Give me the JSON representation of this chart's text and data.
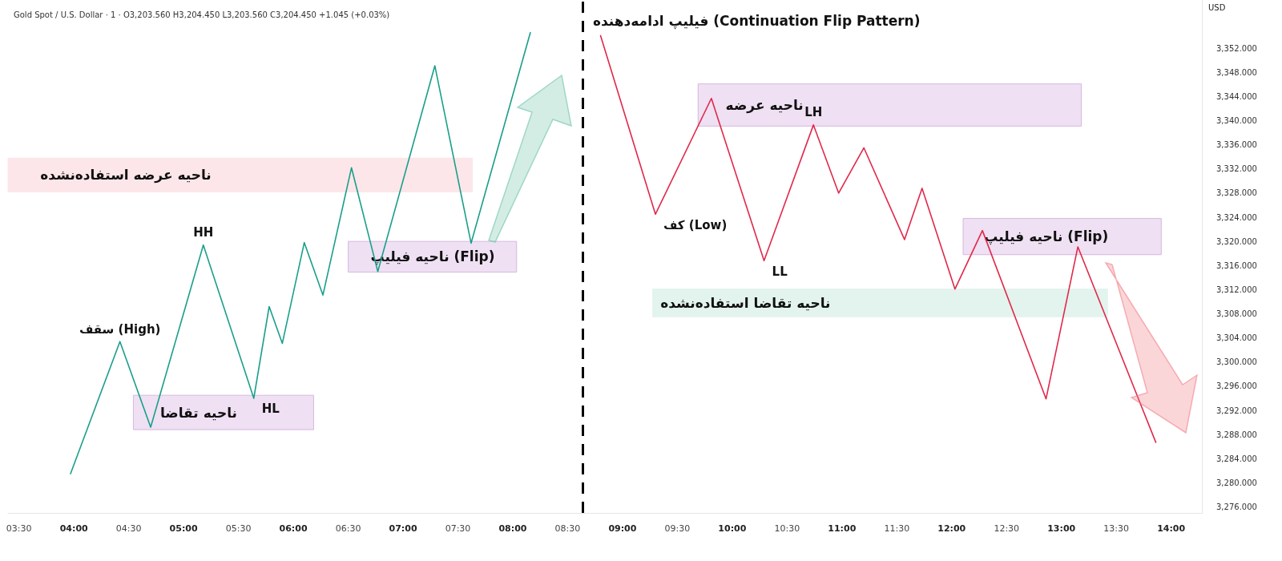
{
  "chart_data": {
    "type": "line",
    "title": "فیلیپ ادامه‌دهنده (Continuation Flip Pattern)",
    "subtitle": "Gold Spot / U.S. Dollar · 1 · O3,203.560 H3,204.450 L3,203.560 C3,204.450 +1.045 (+0.03%)",
    "ylabel": "USD",
    "marker": "none",
    "line_style": "solid",
    "xlim": [
      3.4,
      14.28
    ],
    "ylim": [
      3275,
      3360
    ],
    "xticks": [
      {
        "value": 3.5,
        "label": "03:30"
      },
      {
        "value": 4,
        "label": "04:00"
      },
      {
        "value": 4.5,
        "label": "04:30"
      },
      {
        "value": 5,
        "label": "05:00"
      },
      {
        "value": 5.5,
        "label": "05:30"
      },
      {
        "value": 6,
        "label": "06:00"
      },
      {
        "value": 6.5,
        "label": "06:30"
      },
      {
        "value": 7,
        "label": "07:00"
      },
      {
        "value": 7.5,
        "label": "07:30"
      },
      {
        "value": 8,
        "label": "08:00"
      },
      {
        "value": 8.5,
        "label": "08:30"
      },
      {
        "value": 9,
        "label": "09:00"
      },
      {
        "value": 9.5,
        "label": "09:30"
      },
      {
        "value": 10,
        "label": "10:00"
      },
      {
        "value": 10.5,
        "label": "10:30"
      },
      {
        "value": 11,
        "label": "11:00"
      },
      {
        "value": 11.5,
        "label": "11:30"
      },
      {
        "value": 12,
        "label": "12:00"
      },
      {
        "value": 12.5,
        "label": "12:30"
      },
      {
        "value": 13,
        "label": "13:00"
      },
      {
        "value": 13.5,
        "label": "13:30"
      },
      {
        "value": 14,
        "label": "14:00"
      }
    ],
    "yticks": [
      {
        "value": 3276,
        "label": "3,276.000"
      },
      {
        "value": 3280,
        "label": "3,280.000"
      },
      {
        "value": 3284,
        "label": "3,284.000"
      },
      {
        "value": 3288,
        "label": "3,288.000"
      },
      {
        "value": 3292,
        "label": "3,292.000"
      },
      {
        "value": 3296,
        "label": "3,296.000"
      },
      {
        "value": 3300,
        "label": "3,300.000"
      },
      {
        "value": 3304,
        "label": "3,304.000"
      },
      {
        "value": 3308,
        "label": "3,308.000"
      },
      {
        "value": 3312,
        "label": "3,312.000"
      },
      {
        "value": 3316,
        "label": "3,316.000"
      },
      {
        "value": 3320,
        "label": "3,320.000"
      },
      {
        "value": 3324,
        "label": "3,324.000"
      },
      {
        "value": 3328,
        "label": "3,328.000"
      },
      {
        "value": 3332,
        "label": "3,332.000"
      },
      {
        "value": 3336,
        "label": "3,336.000"
      },
      {
        "value": 3340,
        "label": "3,340.000"
      },
      {
        "value": 3344,
        "label": "3,344.000"
      },
      {
        "value": 3348,
        "label": "3,348.000"
      },
      {
        "value": 3352,
        "label": "3,352.000"
      }
    ],
    "series": [
      {
        "color": "#1a9e8a",
        "x": [
          3.97,
          4.42,
          4.7,
          5.18,
          5.64,
          5.78,
          5.9,
          6.1,
          6.27,
          6.53,
          6.77,
          7.29,
          7.62,
          8.16
        ],
        "values": [
          3281.5,
          3303.4,
          3289.2,
          3319.4,
          3294,
          3309.2,
          3303.1,
          3319.8,
          3311.1,
          3332.2,
          3315,
          3349.1,
          3319.7,
          3354.6
        ]
      },
      {
        "color": "#e0284a",
        "x": [
          8.8,
          9.3,
          9.81,
          10.29,
          10.74,
          10.97,
          11.2,
          11.57,
          11.73,
          12.03,
          12.28,
          12.86,
          13.15,
          13.86
        ],
        "values": [
          3354.1,
          3324.5,
          3343.7,
          3316.8,
          3339.3,
          3328,
          3335.5,
          3320.3,
          3328.8,
          3312.1,
          3321.8,
          3293.9,
          3319.1,
          3286.7
        ]
      }
    ],
    "bands": [
      {
        "axis": "y",
        "from": 3328.2,
        "to": 3333.8,
        "label": "ناحیه عرضه استفاده‌نشده",
        "color": "#fde6e9"
      },
      {
        "axis": "y",
        "from": 3288.8,
        "to": 3294.5,
        "label": "ناحیه تقاضا",
        "color": "#efe0f3"
      },
      {
        "axis": "y",
        "from": 3314.9,
        "to": 3320,
        "label": "ناحیه فیلیپ (Flip)",
        "color": "#efe0f3"
      },
      {
        "axis": "y",
        "from": 3339.1,
        "to": 3346.1,
        "label": "ناحیه عرضه",
        "color": "#efe0f3"
      },
      {
        "axis": "y",
        "from": 3317.8,
        "to": 3323.8,
        "label": "ناحیه فیلیپ (Flip)",
        "color": "#efe0f3"
      },
      {
        "axis": "y",
        "from": 3307.5,
        "to": 3312.1,
        "label": "ناحیه تقاضا استفاده‌نشده",
        "color": "#e3f3ee"
      }
    ],
    "ref_lines": [
      {
        "axis": "x",
        "value": 8.64,
        "color": "#000000",
        "line_style": "dashed"
      }
    ],
    "annotations": [
      {
        "text": "سقف (High)",
        "x": 4.42,
        "y": 3303.4
      },
      {
        "text": "HH",
        "x": 5.18,
        "y": 3319.4
      },
      {
        "text": "HL",
        "x": 5.64,
        "y": 3294
      },
      {
        "text": "کف (Low)",
        "x": 9.3,
        "y": 3324.5
      },
      {
        "text": "LL",
        "x": 10.29,
        "y": 3316.8
      },
      {
        "text": "LH",
        "x": 10.74,
        "y": 3339.3
      }
    ]
  }
}
